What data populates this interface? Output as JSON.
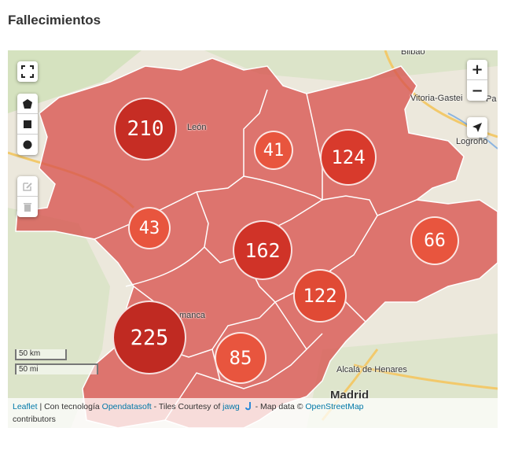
{
  "page": {
    "title": "Fallecimientos"
  },
  "map": {
    "region_fill": "#d9534f",
    "basemap_labels": {
      "bilbao": "Bilbao",
      "vitoria": "Vitoria-Gastei",
      "pa": "Pa",
      "logrono": "Logroño",
      "leon": "León",
      "salamanca": "manca",
      "alcala": "Alcalá de Henares",
      "madrid": "Madrid"
    },
    "clusters": [
      {
        "label": "210",
        "color": "#c62d24"
      },
      {
        "label": "41",
        "color": "#e8553e"
      },
      {
        "label": "124",
        "color": "#d83a2c"
      },
      {
        "label": "43",
        "color": "#e8553e"
      },
      {
        "label": "162",
        "color": "#d03328"
      },
      {
        "label": "66",
        "color": "#e8553e"
      },
      {
        "label": "122",
        "color": "#e04a35"
      },
      {
        "label": "225",
        "color": "#c02a22"
      },
      {
        "label": "85",
        "color": "#e8553e"
      }
    ],
    "controls": {
      "zoom_in": "+",
      "zoom_out": "−"
    },
    "scale": {
      "km": "50 km",
      "mi": "50 mi"
    },
    "attribution": {
      "leaflet": "Leaflet",
      "sep1": " | Con tecnología ",
      "opendatasoft": "Opendatasoft",
      "tiles": " - Tiles Courtesy of ",
      "jawg": "jawg",
      "mapdata": " - Map data © ",
      "osm": "OpenStreetMap",
      "contributors": "contributors"
    }
  }
}
